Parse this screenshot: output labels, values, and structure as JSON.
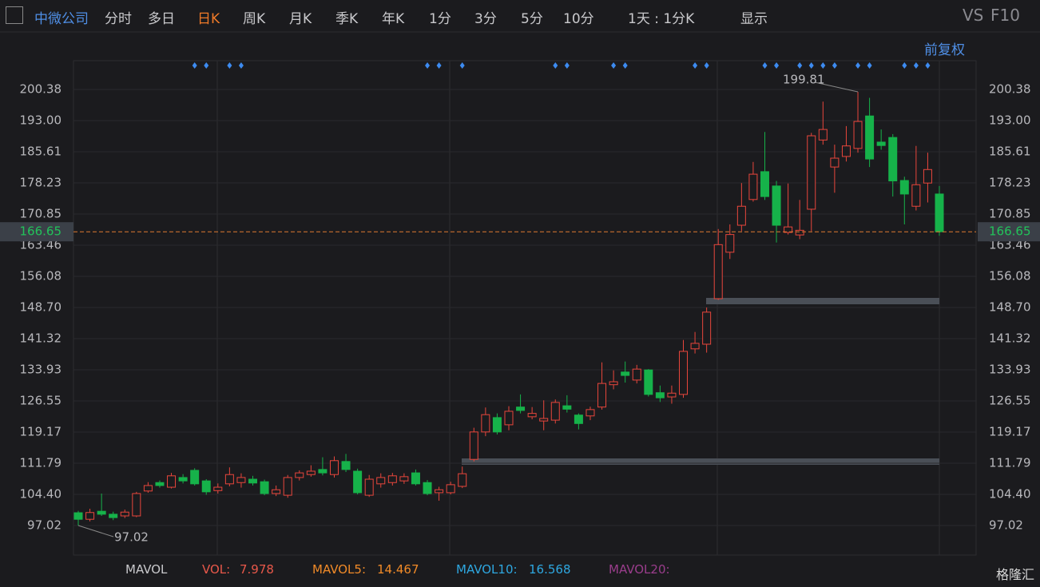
{
  "toolbar": {
    "stock": "中微公司",
    "tabs": [
      "分时",
      "多日",
      "日K",
      "周K",
      "月K",
      "季K",
      "年K",
      "1分",
      "3分",
      "5分",
      "10分"
    ],
    "active_tab": "日K",
    "interval": "1天 : 1分K",
    "display": "显示",
    "vs": "VS",
    "f10": "F10",
    "adjust": "前复权"
  },
  "indicator": {
    "name": "MAVOL",
    "items": [
      {
        "label": "VOL:",
        "value": "7.978",
        "color": "#e8584a"
      },
      {
        "label": "MAVOL5:",
        "value": "14.467",
        "color": "#f08a28"
      },
      {
        "label": "MAVOL10:",
        "value": "16.568",
        "color": "#2ea7e0"
      },
      {
        "label": "MAVOL20:",
        "color": "#9a3d8c"
      }
    ]
  },
  "watermark": "格隆汇",
  "chart_data": {
    "type": "candlestick",
    "up_color": "#e8463c",
    "down_color": "#16b24a",
    "ylim": [
      90.02,
      207.2
    ],
    "yticks": [
      97.02,
      {
        "value": 104.4,
        "label": "104.40"
      },
      111.79,
      119.17,
      126.55,
      133.93,
      141.32,
      {
        "value": 148.7,
        "label": "148.70"
      },
      156.08,
      163.46,
      170.85,
      178.23,
      185.61,
      {
        "value": 193,
        "label": "193.00"
      },
      200.38
    ],
    "open": [
      100.05,
      98.5,
      100.4,
      99.7,
      99.3,
      99.3,
      105.2,
      107.2,
      106.1,
      108.4,
      110.1,
      107.6,
      105.3,
      106.9,
      107.2,
      108,
      107.4,
      104.6,
      104.2,
      108.4,
      109.1,
      110.3,
      109.1,
      112.2,
      109.9,
      104.2,
      106.9,
      107.2,
      107.6,
      109.5,
      107.2,
      104.8,
      104.8,
      106.3,
      112.7,
      119.2,
      122.6,
      120.9,
      125.1,
      122.8,
      121.8,
      122,
      125.4,
      123.2,
      123,
      125.1,
      130.4,
      133.4,
      131.5,
      133.9,
      128.5,
      127.5,
      128.1,
      138.9,
      140,
      150.8,
      161.8,
      168.2,
      174.3,
      180.9,
      177.5,
      166.5,
      165.9,
      172,
      188.4,
      182,
      184.5,
      186.4,
      194.1,
      187.9,
      189,
      178.8,
      172.7,
      178.2,
      175.6
    ],
    "high": [
      100.5,
      101,
      104.6,
      100.3,
      100.8,
      105,
      107.3,
      107.7,
      109.5,
      109.2,
      110.6,
      108,
      107,
      110.8,
      109.4,
      108.8,
      107.9,
      106.5,
      109,
      110.1,
      111.3,
      113.2,
      113.4,
      114,
      110.5,
      109,
      109.4,
      109.5,
      109.4,
      110.3,
      107.8,
      106.2,
      107.4,
      111,
      120.2,
      125,
      123.6,
      125.3,
      128.1,
      125.1,
      126.7,
      126.9,
      127.9,
      123.6,
      125.2,
      135.7,
      133.8,
      135.9,
      135.1,
      134.1,
      130.2,
      130.2,
      141,
      142.9,
      148.7,
      167.3,
      168.4,
      178.2,
      183.2,
      190.3,
      178.7,
      178.1,
      174.2,
      190.1,
      197.5,
      187.3,
      191.7,
      199.81,
      198.4,
      190.9,
      189.8,
      179.7,
      187,
      185.4,
      177.5
    ],
    "low": [
      97.02,
      98,
      99.3,
      98.3,
      98.8,
      99,
      104.8,
      106,
      105.8,
      107,
      106.5,
      104.3,
      104.6,
      106.3,
      106,
      106.5,
      104.2,
      104,
      103.6,
      107.7,
      108.6,
      108.9,
      108.4,
      109.7,
      104.4,
      103.8,
      106,
      106.5,
      106.9,
      106.5,
      104.2,
      102.9,
      104.4,
      105.9,
      112.2,
      118.2,
      118.6,
      119.6,
      123.6,
      122.2,
      119.6,
      121.2,
      123.8,
      119.8,
      122,
      124.5,
      129.3,
      130.9,
      130.7,
      127.6,
      126.3,
      125.9,
      127.3,
      137.8,
      138,
      150.5,
      160.2,
      166.8,
      173.8,
      174.2,
      164.1,
      166,
      164.9,
      166.8,
      187.3,
      175.9,
      183.3,
      185.4,
      182,
      186.1,
      175,
      168.4,
      171.7,
      173.6,
      165.7
    ],
    "close": [
      98.5,
      100.1,
      99.7,
      98.9,
      100.2,
      104.6,
      106.5,
      106.5,
      108.8,
      107.6,
      106.9,
      105,
      106.1,
      109.1,
      108.4,
      107.1,
      104.6,
      105.5,
      108.4,
      109.5,
      109.9,
      109.5,
      112.4,
      110.3,
      104.8,
      108,
      108.4,
      108.8,
      108.6,
      106.9,
      104.6,
      105.5,
      106.7,
      109.3,
      119.2,
      123.3,
      119.2,
      124.1,
      124.3,
      123.6,
      122.4,
      126.2,
      124.6,
      121.2,
      124.5,
      130.7,
      131.1,
      132.6,
      134.1,
      128.1,
      127.3,
      128.4,
      138.3,
      140.2,
      147.6,
      163.6,
      166,
      172.7,
      180.3,
      175,
      168.2,
      167.8,
      167,
      189.4,
      190.9,
      184.1,
      187,
      192.8,
      183.9,
      187.1,
      178.7,
      175.6,
      177.8,
      181.4,
      166.65
    ]
  }
}
